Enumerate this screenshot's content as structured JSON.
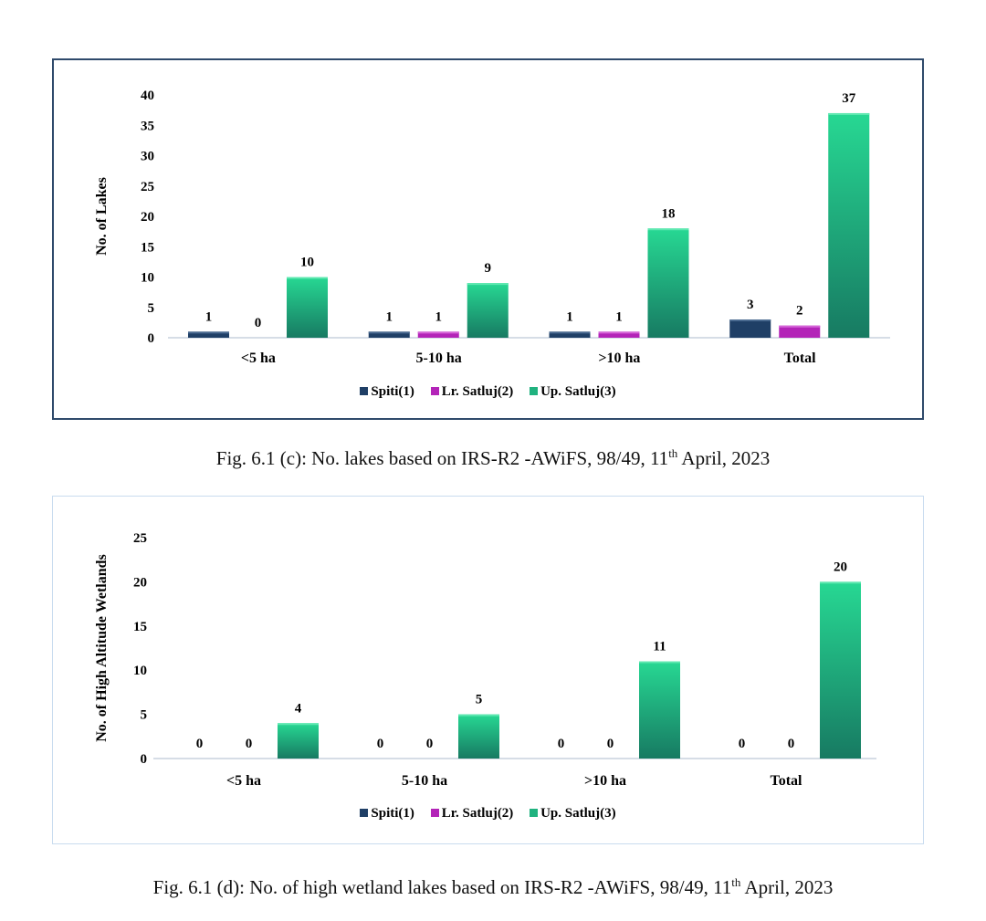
{
  "colors": {
    "spiti": "#1f3f66",
    "lr_satluj": "#b324b8",
    "up_satluj_top": "#27d893",
    "up_satluj_bottom": "#177a62",
    "axis": "#d6dde6"
  },
  "chart_data": [
    {
      "type": "bar",
      "categories": [
        "<5 ha",
        "5-10 ha",
        ">10 ha",
        "Total"
      ],
      "series": [
        {
          "name": "Spiti(1)",
          "values": [
            1,
            1,
            1,
            3
          ]
        },
        {
          "name": "Lr. Satluj(2)",
          "values": [
            0,
            1,
            1,
            2
          ]
        },
        {
          "name": "Up. Satluj(3)",
          "values": [
            10,
            9,
            18,
            37
          ]
        }
      ],
      "ylabel": "No. of Lakes",
      "ylim": [
        0,
        40
      ],
      "yticks": [
        0,
        5,
        10,
        15,
        20,
        25,
        30,
        35,
        40
      ],
      "grid": false,
      "legend": "bottom"
    },
    {
      "type": "bar",
      "categories": [
        "<5 ha",
        "5-10 ha",
        ">10 ha",
        "Total"
      ],
      "series": [
        {
          "name": "Spiti(1)",
          "values": [
            0,
            0,
            0,
            0
          ]
        },
        {
          "name": "Lr. Satluj(2)",
          "values": [
            0,
            0,
            0,
            0
          ]
        },
        {
          "name": "Up. Satluj(3)",
          "values": [
            4,
            5,
            11,
            20
          ]
        }
      ],
      "ylabel": "No. of High Altitude Wetlands",
      "ylim": [
        0,
        25
      ],
      "yticks": [
        0,
        5,
        10,
        15,
        20,
        25
      ],
      "grid": false,
      "legend": "bottom"
    }
  ],
  "captions": {
    "c": {
      "before": "Fig. 6.1 (c): No. lakes based on IRS-R2 -AWiFS, 98/49, 11",
      "sup": "th",
      "after": " April, 2023"
    },
    "d": {
      "before": "Fig. 6.1 (d): No. of high wetland lakes based on IRS-R2 -AWiFS, 98/49, 11",
      "sup": "th",
      "after": " April, 2023"
    }
  }
}
